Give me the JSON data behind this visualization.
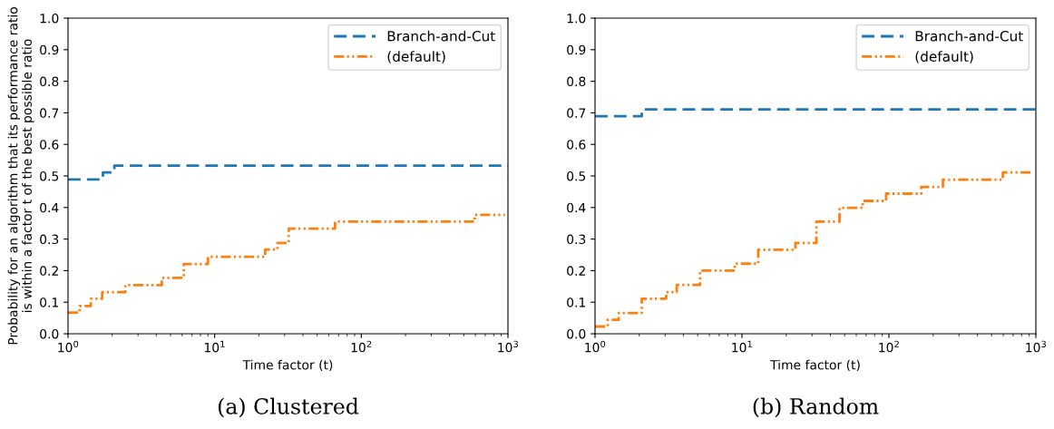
{
  "chart_data": [
    {
      "type": "step",
      "annotations": [
        "(a) Clustered"
      ],
      "xlabel": "Time factor (t)",
      "ylabel": "Probability for an algorithm that its performance ratio\nis within a factor t of the best possible ratio",
      "log": "x",
      "xlim": [
        1,
        1000
      ],
      "ylim": [
        0.0,
        1.0
      ],
      "xticks": [
        {
          "value": 1,
          "label": "10$^{0}$"
        },
        {
          "value": 10,
          "label": "10$^{1}$"
        },
        {
          "value": 100,
          "label": "10$^{2}$"
        },
        {
          "value": 1000,
          "label": "10$^{3}$"
        }
      ],
      "yticks": [
        {
          "value": 0,
          "label": "0.0"
        },
        {
          "value": 0.1,
          "label": "0.1"
        },
        {
          "value": 0.2,
          "label": "0.2"
        },
        {
          "value": 0.3,
          "label": "0.3"
        },
        {
          "value": 0.4,
          "label": "0.4"
        },
        {
          "value": 0.5,
          "label": "0.5"
        },
        {
          "value": 0.6,
          "label": "0.6"
        },
        {
          "value": 0.7,
          "label": "0.7"
        },
        {
          "value": 0.8,
          "label": "0.8"
        },
        {
          "value": 0.9,
          "label": "0.9"
        },
        {
          "value": 1.0,
          "label": "1.0"
        }
      ],
      "legend": "top right",
      "grid": false,
      "series": [
        {
          "name": "Branch-and-Cut",
          "color": "#1f77b4",
          "line_style": "dashed",
          "x": [
            1,
            1.73,
            2.07,
            1000
          ],
          "values": [
            0.489,
            0.511,
            0.533,
            0.533
          ]
        },
        {
          "name": "(default)",
          "color": "#ff7f0e",
          "line_style": "dashdot",
          "x": [
            1,
            1.2,
            1.43,
            1.71,
            2.46,
            4.36,
            6.16,
            9.0,
            22.1,
            26.8,
            32.0,
            66.2,
            593,
            950
          ],
          "values": [
            0.067,
            0.088,
            0.111,
            0.132,
            0.154,
            0.177,
            0.221,
            0.244,
            0.267,
            0.288,
            0.333,
            0.355,
            0.377,
            0.377
          ]
        }
      ]
    },
    {
      "type": "step",
      "annotations": [
        "(b) Random"
      ],
      "xlabel": "Time factor (t)",
      "log": "x",
      "xlim": [
        1,
        1000
      ],
      "ylim": [
        0.0,
        1.0
      ],
      "xticks": [
        {
          "value": 1,
          "label": "10$^{0}$"
        },
        {
          "value": 10,
          "label": "10$^{1}$"
        },
        {
          "value": 100,
          "label": "10$^{2}$"
        },
        {
          "value": 1000,
          "label": "10$^{3}$"
        }
      ],
      "yticks": [
        {
          "value": 0,
          "label": "0.0"
        },
        {
          "value": 0.1,
          "label": "0.1"
        },
        {
          "value": 0.2,
          "label": "0.2"
        },
        {
          "value": 0.3,
          "label": "0.3"
        },
        {
          "value": 0.4,
          "label": "0.4"
        },
        {
          "value": 0.5,
          "label": "0.5"
        },
        {
          "value": 0.6,
          "label": "0.6"
        },
        {
          "value": 0.7,
          "label": "0.7"
        },
        {
          "value": 0.8,
          "label": "0.8"
        },
        {
          "value": 0.9,
          "label": "0.9"
        },
        {
          "value": 1.0,
          "label": "1.0"
        }
      ],
      "legend": "top right",
      "grid": false,
      "series": [
        {
          "name": "Branch-and-Cut",
          "color": "#1f77b4",
          "line_style": "dashed",
          "x": [
            1,
            2.08,
            1000
          ],
          "values": [
            0.689,
            0.711,
            0.711
          ]
        },
        {
          "name": "(default)",
          "color": "#ff7f0e",
          "line_style": "dashdot",
          "x": [
            1,
            1.22,
            1.45,
            2.08,
            3.05,
            3.6,
            5.18,
            8.93,
            12.9,
            23.1,
            32.1,
            46.1,
            66.4,
            95.7,
            166,
            233,
            596,
            950
          ],
          "values": [
            0.023,
            0.044,
            0.066,
            0.111,
            0.132,
            0.155,
            0.2,
            0.222,
            0.266,
            0.288,
            0.355,
            0.399,
            0.421,
            0.444,
            0.465,
            0.488,
            0.511,
            0.511
          ]
        }
      ]
    }
  ]
}
